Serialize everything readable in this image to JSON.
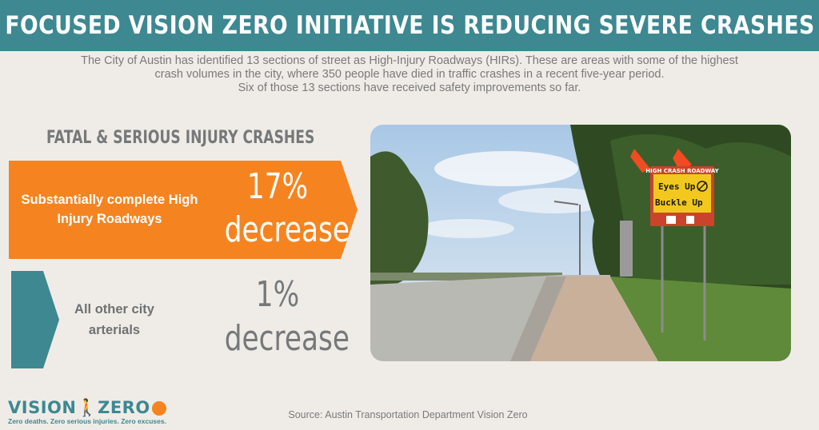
{
  "header": {
    "title": "FOCUSED VISION ZERO INITIATIVE IS REDUCING SEVERE CRASHES"
  },
  "intro": {
    "line1": "The City of Austin has identified 13 sections of street as High-Injury Roadways (HIRs). These are areas with some of the highest",
    "line2": "crash volumes in the city, where 350 people have died in traffic crashes in a recent five-year period.",
    "line3": "Six of those 13 sections have received safety improvements so far."
  },
  "stats": {
    "title": "FATAL & SERIOUS INJURY CRASHES",
    "hir": {
      "label": "Substantially complete High Injury Roadways",
      "value": "17%",
      "change": "decrease"
    },
    "other": {
      "label": "All other city arterials",
      "value": "1%",
      "change": "decrease"
    }
  },
  "photo": {
    "sign_header": "HIGH CRASH ROADWAY",
    "sign_line1": "Eyes Up",
    "sign_line2": "Buckle Up"
  },
  "logo": {
    "wordmark_left": "VISION",
    "wordmark_right": "ZERO",
    "tagline": "Zero deaths. Zero serious injuries. Zero excuses."
  },
  "footer": {
    "source": "Source: Austin Transportation Department Vision Zero"
  },
  "colors": {
    "teal": "#3d8891",
    "orange": "#f58420",
    "background": "#efece7",
    "gray_text": "#76787a"
  }
}
